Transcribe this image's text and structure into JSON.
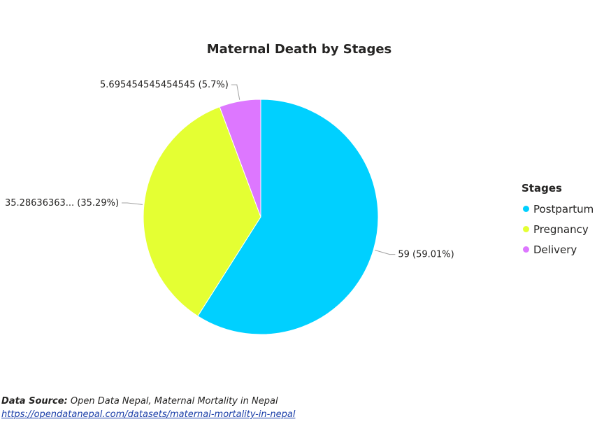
{
  "chart_data": {
    "type": "pie",
    "title": "Maternal Death by Stages",
    "legend_title": "Stages",
    "legend_position": "right",
    "categories": [
      "Postpartum",
      "Pregnancy",
      "Delivery"
    ],
    "values": [
      59,
      35.28636363,
      5.695454545454545
    ],
    "data_labels": [
      "59 (59.01%)",
      "35.28636363... (35.29%)",
      "5.695454545454545 (5.7%)"
    ],
    "colors": [
      "#00d0ff",
      "#e4ff33",
      "#dd77ff"
    ]
  },
  "footer": {
    "source_label": "Data Source:",
    "source_text": "Open Data Nepal, Maternal Mortality in Nepal",
    "source_url": "https://opendatanepal.com/datasets/maternal-mortality-in-nepal"
  }
}
